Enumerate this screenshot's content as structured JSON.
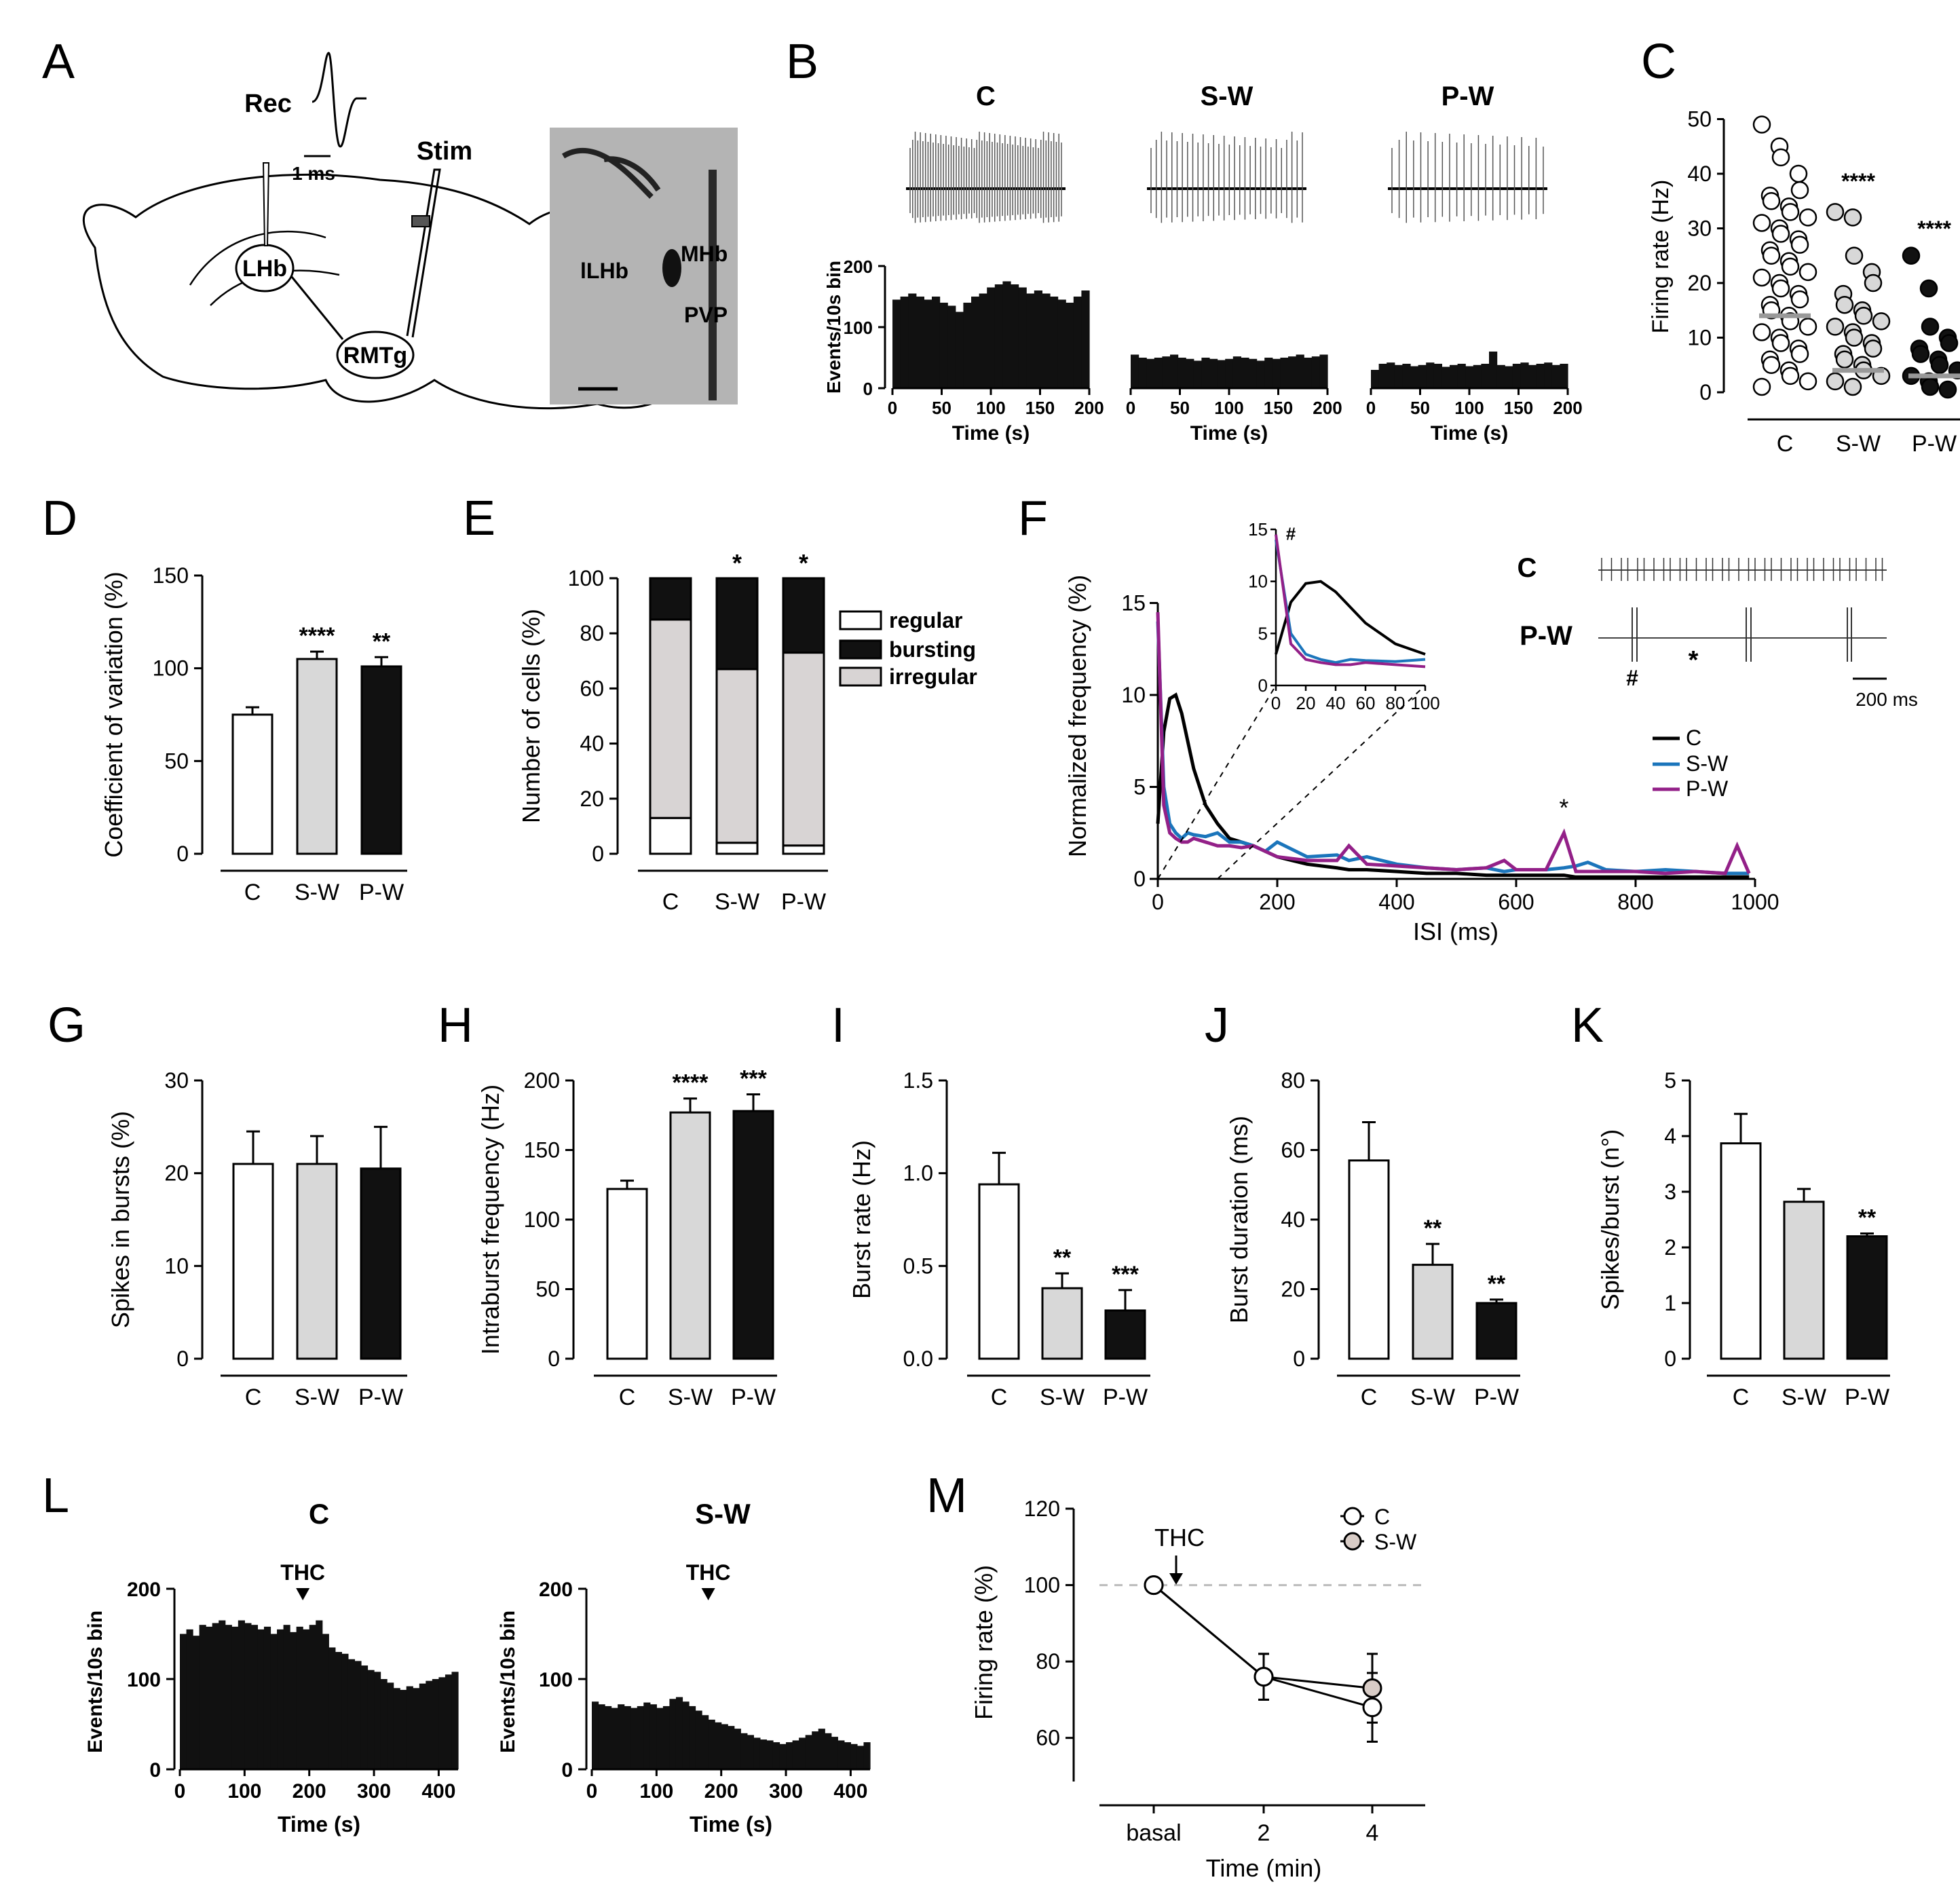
{
  "panel_letters": [
    "A",
    "B",
    "C",
    "D",
    "E",
    "F",
    "G",
    "H",
    "I",
    "J",
    "K",
    "L",
    "M"
  ],
  "panelA": {
    "labels": {
      "rec": "Rec",
      "stim": "Stim",
      "scale": "1 ms",
      "lhb": "LHb",
      "rmtg": "RMTg"
    },
    "histology": {
      "lhb": "lLHb",
      "mhb": "MHb",
      "pvp": "PVP"
    }
  },
  "chart_data": [
    {
      "id": "B",
      "type": "bar",
      "ylabel": "Events/10s bin",
      "xlabel": "Time (s)",
      "ylim": [
        0,
        200
      ],
      "xlim": [
        0,
        200
      ],
      "yticks": [
        0,
        100,
        200
      ],
      "xticks": [
        0,
        50,
        100,
        150,
        200
      ],
      "series": [
        {
          "name": "C",
          "values": [
            145,
            150,
            155,
            150,
            145,
            150,
            140,
            135,
            125,
            140,
            150,
            155,
            165,
            170,
            175,
            170,
            165,
            155,
            160,
            155,
            150,
            145,
            140,
            150,
            160
          ]
        },
        {
          "name": "S-W",
          "values": [
            55,
            50,
            48,
            50,
            52,
            55,
            50,
            48,
            45,
            50,
            48,
            46,
            48,
            52,
            50,
            48,
            45,
            50,
            48,
            50,
            52,
            55,
            50,
            52,
            55
          ]
        },
        {
          "name": "P-W",
          "values": [
            30,
            40,
            42,
            38,
            40,
            36,
            38,
            42,
            40,
            35,
            38,
            40,
            36,
            38,
            40,
            60,
            38,
            36,
            40,
            42,
            38,
            40,
            42,
            38,
            40
          ]
        }
      ]
    },
    {
      "id": "C",
      "type": "scatter",
      "ylabel": "Firing rate (Hz)",
      "ylim": [
        0,
        50
      ],
      "yticks": [
        0,
        10,
        20,
        30,
        40,
        50
      ],
      "categories": [
        "C",
        "S-W",
        "P-W"
      ],
      "medians": [
        14,
        4,
        3
      ],
      "significance": [
        "",
        "****",
        "****"
      ],
      "points": [
        [
          49,
          45,
          43,
          40,
          37,
          36,
          35,
          34,
          33,
          32,
          31,
          30,
          29,
          28,
          27,
          26,
          25,
          24,
          23,
          22,
          21,
          20,
          19,
          18,
          17,
          16,
          15,
          14,
          13,
          12,
          11,
          10,
          9,
          8,
          7,
          6,
          5,
          4,
          3,
          2,
          1
        ],
        [
          33,
          32,
          25,
          22,
          20,
          18,
          16,
          15,
          14,
          13,
          12,
          11,
          10,
          9,
          8,
          7,
          6,
          5,
          4,
          3,
          2,
          1
        ],
        [
          25,
          19,
          12,
          10,
          9,
          8,
          7,
          6,
          5,
          4,
          3,
          2,
          1,
          0.5
        ]
      ]
    },
    {
      "id": "D",
      "type": "bar",
      "ylabel": "Coefficient of variation (%)",
      "ylim": [
        0,
        150
      ],
      "yticks": [
        0,
        50,
        100,
        150
      ],
      "categories": [
        "C",
        "S-W",
        "P-W"
      ],
      "values": [
        75,
        105,
        101
      ],
      "errors": [
        4,
        4,
        5
      ],
      "significance": [
        "",
        "****",
        "**"
      ]
    },
    {
      "id": "E",
      "type": "stacked-bar",
      "ylabel": "Number of cells (%)",
      "ylim": [
        0,
        100
      ],
      "yticks": [
        0,
        20,
        40,
        60,
        80,
        100
      ],
      "categories": [
        "C",
        "S-W",
        "P-W"
      ],
      "series": [
        {
          "name": "regular",
          "values": [
            13,
            4,
            3
          ]
        },
        {
          "name": "irregular",
          "values": [
            72,
            63,
            70
          ]
        },
        {
          "name": "bursting",
          "values": [
            15,
            33,
            27
          ]
        }
      ],
      "significance": [
        "",
        "*",
        "*"
      ]
    },
    {
      "id": "F",
      "type": "line",
      "ylabel": "Normalized frequency (%)",
      "xlabel": "ISI  (ms)",
      "ylim": [
        0,
        15
      ],
      "xlim": [
        0,
        1000
      ],
      "yticks": [
        0,
        5,
        10,
        15
      ],
      "xticks": [
        0,
        200,
        400,
        600,
        800,
        1000
      ],
      "x": [
        0,
        10,
        20,
        30,
        40,
        50,
        60,
        80,
        100,
        120,
        140,
        160,
        180,
        200,
        250,
        300,
        320,
        350,
        400,
        450,
        500,
        550,
        580,
        600,
        650,
        680,
        700,
        720,
        750,
        800,
        850,
        900,
        950,
        970,
        990
      ],
      "series": [
        {
          "name": "C",
          "values": [
            3,
            8,
            9.8,
            10,
            9,
            7.5,
            6,
            4,
            3,
            2.2,
            2,
            1.8,
            1.5,
            1.2,
            0.8,
            0.6,
            0.5,
            0.5,
            0.4,
            0.3,
            0.3,
            0.2,
            0.2,
            0.2,
            0.2,
            0.2,
            0.1,
            0.1,
            0.1,
            0.1,
            0.1,
            0.1,
            0.1,
            0.1,
            0.1
          ]
        },
        {
          "name": "S-W",
          "values": [
            14,
            5,
            3,
            2.5,
            2.2,
            2.5,
            2.4,
            2.3,
            2.5,
            2.0,
            2.0,
            1.8,
            1.5,
            2.0,
            1.2,
            1.3,
            1.0,
            1.2,
            0.8,
            0.6,
            0.5,
            0.6,
            0.4,
            0.5,
            0.5,
            0.6,
            0.7,
            0.9,
            0.5,
            0.4,
            0.5,
            0.4,
            0.3,
            0.3,
            0.3
          ]
        },
        {
          "name": "P-W",
          "values": [
            14.5,
            4,
            2.5,
            2.2,
            2.0,
            2.0,
            2.2,
            2.0,
            1.8,
            1.8,
            1.7,
            1.8,
            1.5,
            1.2,
            1.0,
            1.0,
            1.8,
            0.8,
            0.7,
            0.6,
            0.5,
            0.6,
            1.0,
            0.5,
            0.5,
            2.5,
            0.4,
            0.4,
            0.4,
            0.4,
            0.3,
            0.4,
            0.3,
            1.8,
            0.3
          ]
        }
      ],
      "annotation": "*",
      "inset": {
        "xlim": [
          0,
          100
        ],
        "ylim": [
          0,
          15
        ],
        "xticks": [
          0,
          20,
          40,
          60,
          80,
          100
        ],
        "yticks": [
          0,
          5,
          10,
          15
        ],
        "annotation": "#"
      },
      "traces": {
        "c": "C",
        "pw": "P-W",
        "scale": "200 ms",
        "hash": "#",
        "star": "*"
      }
    },
    {
      "id": "G",
      "type": "bar",
      "ylabel": "Spikes in bursts (%)",
      "ylim": [
        0,
        30
      ],
      "yticks": [
        0,
        10,
        20,
        30
      ],
      "categories": [
        "C",
        "S-W",
        "P-W"
      ],
      "values": [
        21,
        21,
        20.5
      ],
      "errors": [
        3.5,
        3,
        4.5
      ],
      "significance": [
        "",
        "",
        ""
      ]
    },
    {
      "id": "H",
      "type": "bar",
      "ylabel": "Intraburst frequency (Hz)",
      "ylim": [
        0,
        200
      ],
      "yticks": [
        0,
        50,
        100,
        150,
        200
      ],
      "categories": [
        "C",
        "S-W",
        "P-W"
      ],
      "values": [
        122,
        177,
        178
      ],
      "errors": [
        6,
        10,
        12
      ],
      "significance": [
        "",
        "****",
        "***"
      ]
    },
    {
      "id": "I",
      "type": "bar",
      "ylabel": "Burst rate (Hz)",
      "ylim": [
        0,
        1.5
      ],
      "yticks": [
        "0.0",
        "0.5",
        "1.0",
        "1.5"
      ],
      "categories": [
        "C",
        "S-W",
        "P-W"
      ],
      "values": [
        0.94,
        0.38,
        0.26
      ],
      "errors": [
        0.17,
        0.08,
        0.11
      ],
      "significance": [
        "",
        "**",
        "***"
      ]
    },
    {
      "id": "J",
      "type": "bar",
      "ylabel": "Burst duration (ms)",
      "ylim": [
        0,
        80
      ],
      "yticks": [
        0,
        20,
        40,
        60,
        80
      ],
      "categories": [
        "C",
        "S-W",
        "P-W"
      ],
      "values": [
        57,
        27,
        16
      ],
      "errors": [
        11,
        6,
        1
      ],
      "significance": [
        "",
        "**",
        "**"
      ]
    },
    {
      "id": "K",
      "type": "bar",
      "ylabel": "Spikes/burst (n°)",
      "ylim": [
        0,
        5
      ],
      "yticks": [
        0,
        1,
        2,
        3,
        4,
        5
      ],
      "categories": [
        "C",
        "S-W",
        "P-W"
      ],
      "values": [
        3.87,
        2.82,
        2.2
      ],
      "errors": [
        0.53,
        0.23,
        0.05
      ],
      "significance": [
        "",
        "",
        "**"
      ]
    },
    {
      "id": "L",
      "type": "bar",
      "ylabel": "Events/10s bin",
      "xlabel": "Time (s)",
      "ylim": [
        0,
        200
      ],
      "xlim": [
        0,
        430
      ],
      "yticks": [
        0,
        100,
        200
      ],
      "xticks": [
        0,
        100,
        200,
        300,
        400
      ],
      "marker": "THC",
      "marker_times": [
        190,
        180
      ],
      "series": [
        {
          "name": "C",
          "values": [
            150,
            155,
            148,
            160,
            158,
            162,
            165,
            160,
            158,
            165,
            162,
            160,
            155,
            158,
            150,
            155,
            160,
            152,
            158,
            155,
            160,
            165,
            150,
            135,
            130,
            128,
            122,
            120,
            115,
            110,
            108,
            100,
            96,
            90,
            88,
            92,
            90,
            95,
            98,
            100,
            102,
            105,
            108
          ]
        },
        {
          "name": "S-W",
          "values": [
            75,
            72,
            70,
            68,
            72,
            70,
            68,
            70,
            74,
            72,
            68,
            70,
            78,
            80,
            75,
            70,
            65,
            60,
            55,
            52,
            50,
            48,
            45,
            40,
            38,
            35,
            33,
            32,
            30,
            28,
            30,
            32,
            35,
            38,
            42,
            45,
            40,
            36,
            32,
            30,
            28,
            26,
            30
          ]
        }
      ]
    },
    {
      "id": "M",
      "type": "line",
      "ylabel": "Firing rate (%)",
      "xlabel": "Time (min)",
      "ylim": [
        50,
        120
      ],
      "yticks": [
        60,
        80,
        100,
        120
      ],
      "categories": [
        "basal",
        "2",
        "4"
      ],
      "reference": 100,
      "marker": "THC",
      "series": [
        {
          "name": "C",
          "values": [
            100,
            76,
            68
          ],
          "errors": [
            0,
            6,
            9
          ]
        },
        {
          "name": "S-W",
          "values": [
            100,
            76,
            73
          ],
          "errors": [
            0,
            6,
            9
          ]
        }
      ]
    }
  ]
}
